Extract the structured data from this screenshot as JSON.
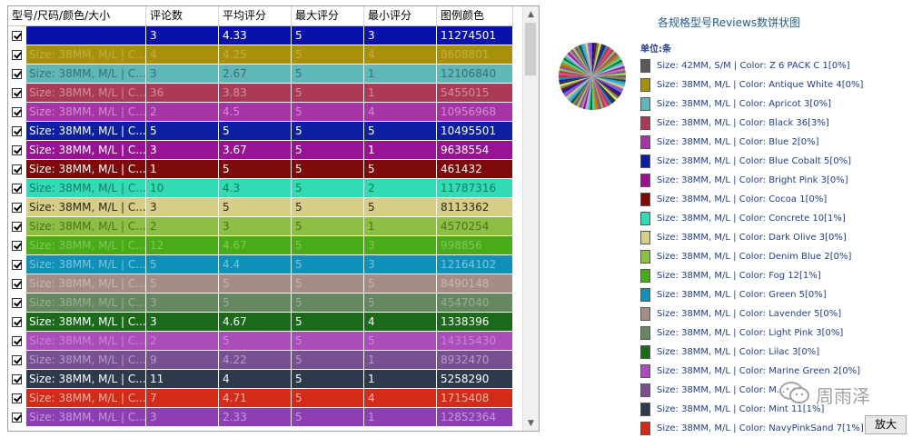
{
  "grid": {
    "headers": [
      "型号/尺码/颜色/大小",
      "评论数",
      "平均评分",
      "最大评分",
      "最小评分",
      "图例颜色"
    ],
    "rows": [
      {
        "name": "",
        "reviews": "3",
        "avg": "4.33",
        "max": "5",
        "min": "3",
        "legend_color": "11274501",
        "bg": "#0a10ac",
        "fg": "#ffffff"
      },
      {
        "name": "Size: 38MM, M/L | C...",
        "reviews": "4",
        "avg": "4.25",
        "max": "5",
        "min": "4",
        "legend_color": "8608801",
        "bg": "#a8900c",
        "fg": "#c2ad43"
      },
      {
        "name": "Size: 38MM, M/L | C...",
        "reviews": "3",
        "avg": "2.67",
        "max": "5",
        "min": "1",
        "legend_color": "12106840",
        "bg": "#5fb7b8",
        "fg": "#3c6f74"
      },
      {
        "name": "Size: 38MM, M/L | C...",
        "reviews": "36",
        "avg": "3.83",
        "max": "5",
        "min": "1",
        "legend_color": "5455015",
        "bg": "#aa3a57",
        "fg": "#cf8f9a"
      },
      {
        "name": "Size: 38MM, M/L | C...",
        "reviews": "2",
        "avg": "4.5",
        "max": "5",
        "min": "4",
        "legend_color": "10956968",
        "bg": "#a633a7",
        "fg": "#cf8ed0"
      },
      {
        "name": "Size: 38MM, M/L | C...",
        "reviews": "5",
        "avg": "5",
        "max": "5",
        "min": "5",
        "legend_color": "10495501",
        "bg": "#0c1fa0",
        "fg": "#ffffff"
      },
      {
        "name": "Size: 38MM, M/L | C...",
        "reviews": "3",
        "avg": "3.67",
        "max": "5",
        "min": "1",
        "legend_color": "9638554",
        "bg": "#9a1293",
        "fg": "#ffffff"
      },
      {
        "name": "Size: 38MM, M/L | C...",
        "reviews": "1",
        "avg": "5",
        "max": "5",
        "min": "5",
        "legend_color": "461432",
        "bg": "#7d0a08",
        "fg": "#ffffff"
      },
      {
        "name": "Size: 38MM, M/L | C...",
        "reviews": "10",
        "avg": "4.3",
        "max": "5",
        "min": "2",
        "legend_color": "11787316",
        "bg": "#33dbb4",
        "fg": "#147a64"
      },
      {
        "name": "Size: 38MM, M/L | C...",
        "reviews": "3",
        "avg": "5",
        "max": "5",
        "min": "5",
        "legend_color": "8113362",
        "bg": "#d6cd86",
        "fg": "#2d2a16"
      },
      {
        "name": "Size: 38MM, M/L | C...",
        "reviews": "2",
        "avg": "3",
        "max": "5",
        "min": "1",
        "legend_color": "4570254",
        "bg": "#8ebf45",
        "fg": "#4f7220"
      },
      {
        "name": "Size: 38MM, M/L | C...",
        "reviews": "12",
        "avg": "4.67",
        "max": "5",
        "min": "3",
        "legend_color": "998856",
        "bg": "#4aab18",
        "fg": "#80c85a"
      },
      {
        "name": "Size: 38MM, M/L | C...",
        "reviews": "5",
        "avg": "4.4",
        "max": "5",
        "min": "3",
        "legend_color": "12164102",
        "bg": "#0e90b8",
        "fg": "#7ec4da"
      },
      {
        "name": "Size: 38MM, M/L | C...",
        "reviews": "5",
        "avg": "5",
        "max": "5",
        "min": "5",
        "legend_color": "8490148",
        "bg": "#a48d84",
        "fg": "#c8b7b0"
      },
      {
        "name": "Size: 38MM, M/L | C...",
        "reviews": "3",
        "avg": "5",
        "max": "5",
        "min": "5",
        "legend_color": "4547040",
        "bg": "#668860",
        "fg": "#97ae92"
      },
      {
        "name": "Size: 38MM, M/L | C...",
        "reviews": "3",
        "avg": "4.67",
        "max": "5",
        "min": "4",
        "legend_color": "1338396",
        "bg": "#1a6a1a",
        "fg": "#ffffff"
      },
      {
        "name": "Size: 38MM, M/L | C...",
        "reviews": "2",
        "avg": "5",
        "max": "5",
        "min": "5",
        "legend_color": "14315430",
        "bg": "#ab4cbb",
        "fg": "#c588d0"
      },
      {
        "name": "Size: 38MM, M/L | C...",
        "reviews": "9",
        "avg": "4.22",
        "max": "5",
        "min": "1",
        "legend_color": "8932470",
        "bg": "#785092",
        "fg": "#b49cc4"
      },
      {
        "name": "Size: 38MM, M/L | C...",
        "reviews": "11",
        "avg": "4",
        "max": "5",
        "min": "1",
        "legend_color": "5258290",
        "bg": "#2c3a4c",
        "fg": "#ffffff"
      },
      {
        "name": "Size: 38MM, M/L | C...",
        "reviews": "7",
        "avg": "4.71",
        "max": "5",
        "min": "4",
        "legend_color": "1715408",
        "bg": "#d32b1a",
        "fg": "#f2b3a8"
      },
      {
        "name": "Size: 38MM, M/L | C...",
        "reviews": "3",
        "avg": "2.33",
        "max": "5",
        "min": "1",
        "legend_color": "12852364",
        "bg": "#8c3eb2",
        "fg": "#c39bd8"
      }
    ]
  },
  "chart": {
    "title": "各规格型号Reviews数饼状图",
    "unit_label": "单位:条",
    "legend": [
      {
        "label": "Size: 42MM, S/M | Color: Z 6 PACK C 1[0%]",
        "color": "#5a5a5a"
      },
      {
        "label": "Size: 38MM, M/L | Color: Antique White 4[0%]",
        "color": "#a8900c"
      },
      {
        "label": "Size: 38MM, M/L | Color: Apricot 3[0%]",
        "color": "#5fb7b8"
      },
      {
        "label": "Size: 38MM, M/L | Color: Black 36[3%]",
        "color": "#aa3a57"
      },
      {
        "label": "Size: 38MM, M/L | Color: Blue 2[0%]",
        "color": "#a633a7"
      },
      {
        "label": "Size: 38MM, M/L | Color: Blue Cobalt 5[0%]",
        "color": "#0c1fa0"
      },
      {
        "label": "Size: 38MM, M/L | Color: Bright Pink 3[0%]",
        "color": "#9a1293"
      },
      {
        "label": "Size: 38MM, M/L | Color: Cocoa 1[0%]",
        "color": "#7d0a08"
      },
      {
        "label": "Size: 38MM, M/L | Color: Concrete 10[1%]",
        "color": "#33dbb4"
      },
      {
        "label": "Size: 38MM, M/L | Color: Dark Olive 3[0%]",
        "color": "#d6cd86"
      },
      {
        "label": "Size: 38MM, M/L | Color: Denim Blue 2[0%]",
        "color": "#8ebf45"
      },
      {
        "label": "Size: 38MM, M/L | Color: Fog 12[1%]",
        "color": "#4aab18"
      },
      {
        "label": "Size: 38MM, M/L | Color: Green 5[0%]",
        "color": "#0e90b8"
      },
      {
        "label": "Size: 38MM, M/L | Color: Lavender 5[0%]",
        "color": "#a48d84"
      },
      {
        "label": "Size: 38MM, M/L | Color: Light Pink 3[0%]",
        "color": "#668860"
      },
      {
        "label": "Size: 38MM, M/L | Color: Lilac 3[0%]",
        "color": "#1a6a1a"
      },
      {
        "label": "Size: 38MM, M/L | Color: Marine Green 2[0%]",
        "color": "#ab4cbb"
      },
      {
        "label": "Size: 38MM, M/L | Color: M...",
        "color": "#785092"
      },
      {
        "label": "Size: 38MM, M/L | Color: Mint 11[1%]",
        "color": "#2c3a4c"
      },
      {
        "label": "Size: 38MM, M/L | Color: NavyPinkSand 7[1%]",
        "color": "#d32b1a"
      }
    ],
    "pie_colors": [
      "#0a10ac",
      "#a8900c",
      "#5fb7b8",
      "#aa3a57",
      "#a633a7",
      "#0c1fa0",
      "#9a1293",
      "#7d0a08",
      "#33dbb4",
      "#d6cd86",
      "#8ebf45",
      "#4aab18",
      "#0e90b8",
      "#a48d84",
      "#668860",
      "#1a6a1a",
      "#ab4cbb",
      "#785092",
      "#2c3a4c",
      "#d32b1a",
      "#8c3eb2",
      "#e0e060",
      "#40c0a0",
      "#6060d0",
      "#c06020",
      "#20a0e0",
      "#e040a0",
      "#90e030",
      "#303030",
      "#b0b0ff"
    ]
  },
  "zoom_button_label": "放大",
  "watermark_text": "周雨泽"
}
